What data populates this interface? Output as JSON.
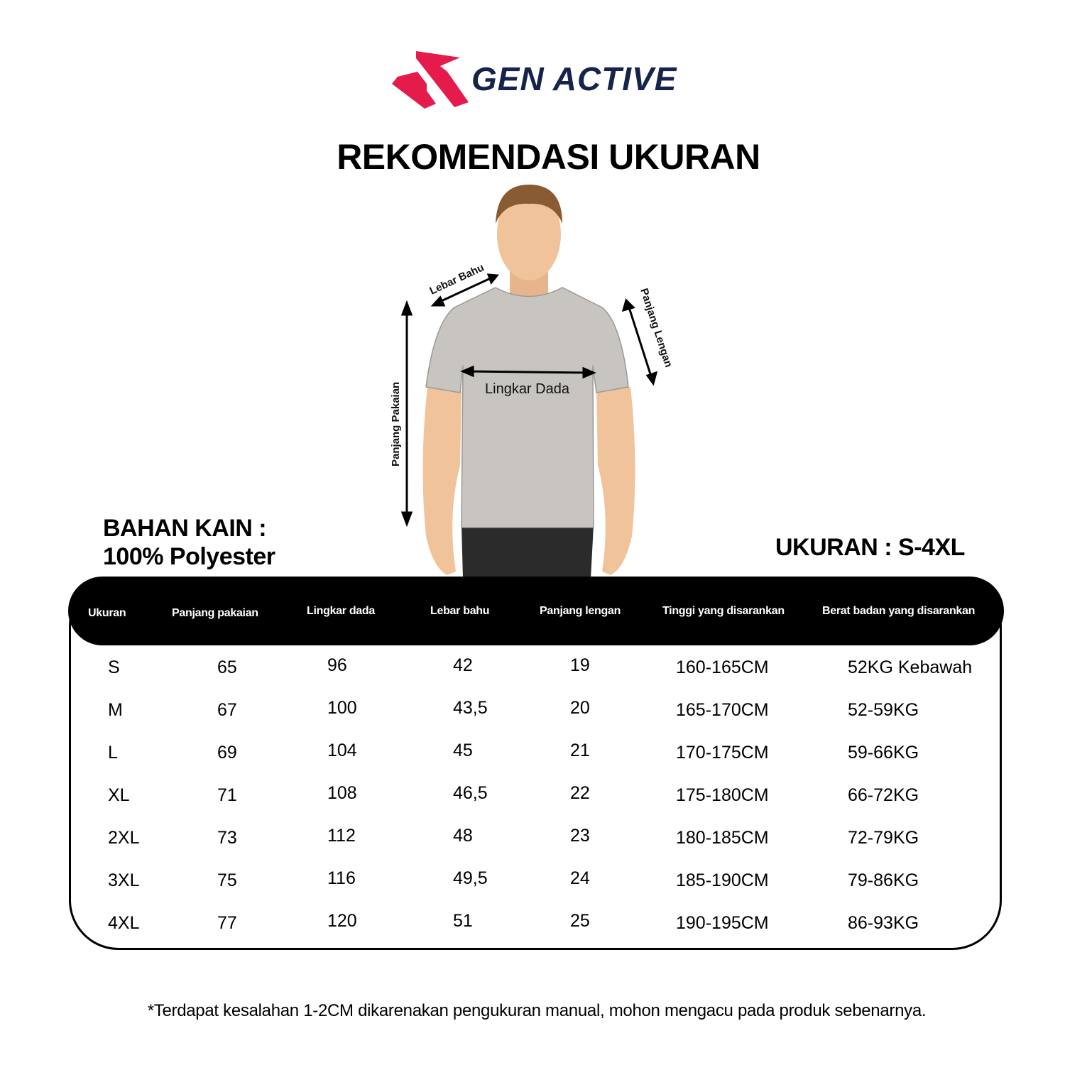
{
  "brand": {
    "name": "GEN ACTIVE",
    "primary_color": "#e51b4b",
    "text_color": "#14244a"
  },
  "title": "REKOMENDASI UKURAN",
  "figure": {
    "labels": {
      "shoulder": "Lebar Bahu",
      "sleeve": "Panjang Lengan",
      "chest": "Lingkar Dada",
      "length": "Panjang Pakaian"
    }
  },
  "material": {
    "label": "BAHAN KAIN :",
    "value": "100% Polyester"
  },
  "sizes": {
    "label": "UKURAN : S-4XL"
  },
  "table": {
    "headers": [
      "Ukuran",
      "Panjang pakaian",
      "Lingkar dada",
      "Lebar bahu",
      "Panjang lengan",
      "Tinggi yang disarankan",
      "Berat badan yang disarankan"
    ],
    "rows": [
      [
        "S",
        "65",
        "96",
        "42",
        "19",
        "160-165CM",
        "52KG Kebawah"
      ],
      [
        "M",
        "67",
        "100",
        "43,5",
        "20",
        "165-170CM",
        "52-59KG"
      ],
      [
        "L",
        "69",
        "104",
        "45",
        "21",
        "170-175CM",
        "59-66KG"
      ],
      [
        "XL",
        "71",
        "108",
        "46,5",
        "22",
        "175-180CM",
        "66-72KG"
      ],
      [
        "2XL",
        "73",
        "112",
        "48",
        "23",
        "180-185CM",
        "72-79KG"
      ],
      [
        "3XL",
        "75",
        "116",
        "49,5",
        "24",
        "185-190CM",
        "79-86KG"
      ],
      [
        "4XL",
        "77",
        "120",
        "51",
        "25",
        "190-195CM",
        "86-93KG"
      ]
    ]
  },
  "note": "*Terdapat kesalahan 1-2CM dikarenakan pengukuran manual, mohon mengacu pada produk sebenarnya."
}
